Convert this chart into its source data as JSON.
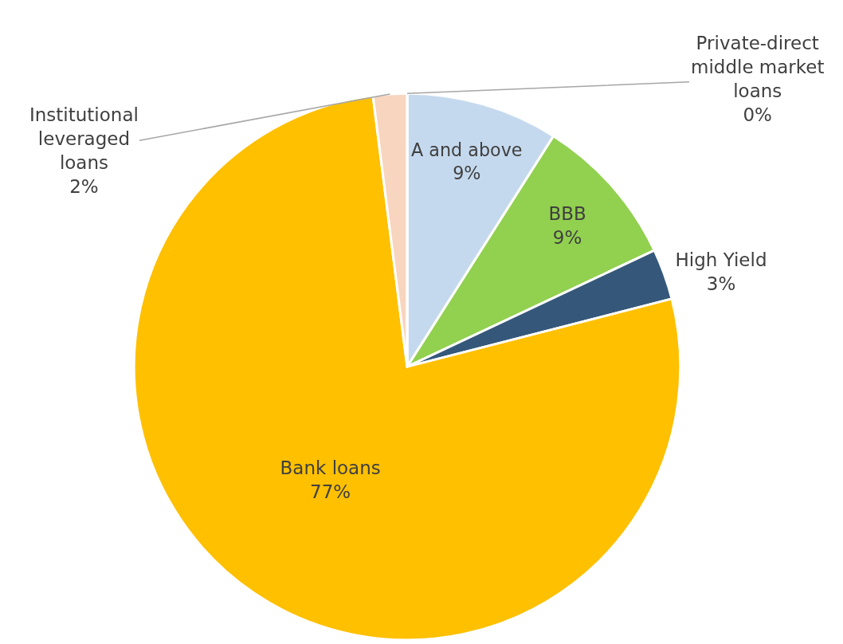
{
  "chart_data": {
    "type": "pie",
    "categories": [
      "A and above",
      "BBB",
      "High Yield",
      "Bank loans",
      "Institutional leveraged loans",
      "Private-direct middle market loans"
    ],
    "values": [
      9,
      9,
      3,
      77,
      2,
      0
    ],
    "value_labels": [
      "9%",
      "9%",
      "3%",
      "77%",
      "2%",
      "0%"
    ],
    "colors": [
      "#c5d9ee",
      "#92d050",
      "#35587a",
      "#ffc000",
      "#f8d5be",
      "#a6a6a6"
    ],
    "legend": false
  }
}
